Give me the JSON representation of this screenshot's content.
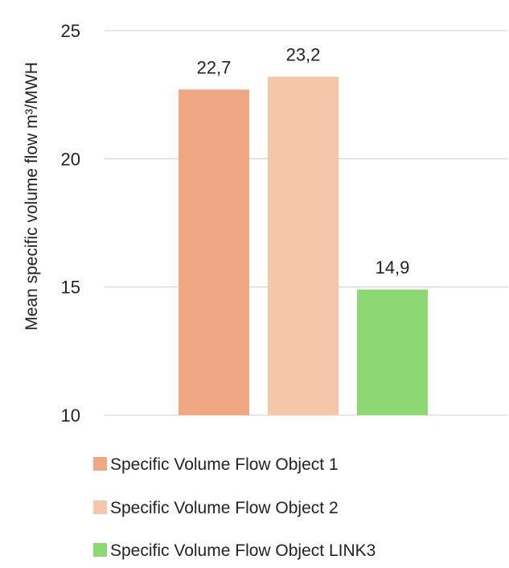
{
  "chart_data": {
    "type": "bar",
    "title": "",
    "xlabel": "",
    "ylabel": "Mean specific volume flow m³/MWH",
    "ylim": [
      10,
      25
    ],
    "yticks": [
      "10",
      "15",
      "20",
      "25"
    ],
    "grid": true,
    "legend_position": "bottom",
    "series": [
      {
        "name": "Specific Volume Flow Object 1",
        "values": [
          22.7
        ],
        "label": "22,7",
        "color": "#F0A884"
      },
      {
        "name": "Specific Volume Flow Object 2",
        "values": [
          23.2
        ],
        "label": "23,2",
        "color": "#F5C6AA"
      },
      {
        "name": "Specific Volume Flow Object LINK3",
        "values": [
          14.9
        ],
        "label": "14,9",
        "color": "#8ED873"
      }
    ],
    "gridline_color": "#D9D9D9"
  }
}
